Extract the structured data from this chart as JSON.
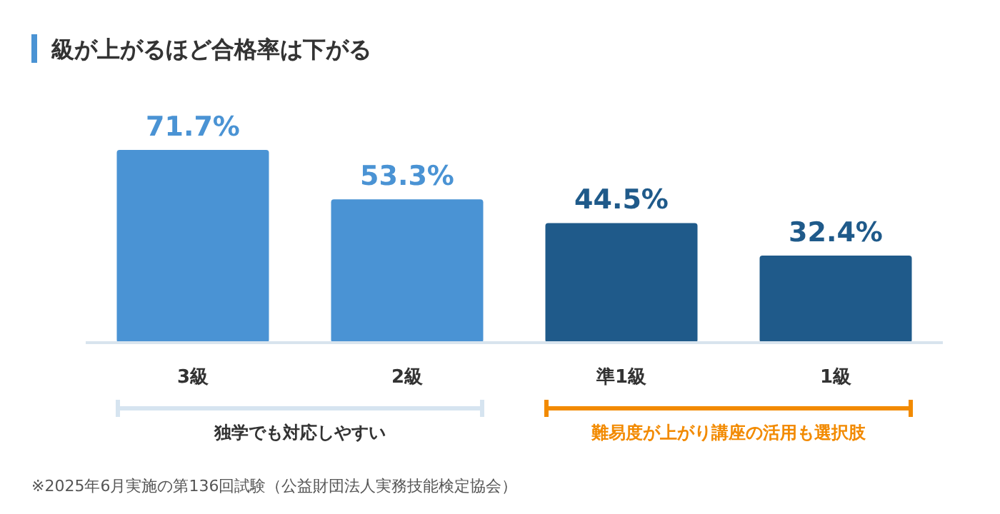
{
  "chart_data": {
    "type": "bar",
    "title": "級が上がるほど合格率は下がる",
    "categories": [
      "3級",
      "2級",
      "準1級",
      "1級"
    ],
    "values": [
      71.7,
      53.3,
      44.5,
      32.4
    ],
    "value_labels": [
      "71.7%",
      "53.3%",
      "44.5%",
      "32.4%"
    ],
    "colors": [
      "#4a93d4",
      "#4a93d4",
      "#1f5a8a",
      "#1f5a8a"
    ],
    "annotations": [
      "独学でも対応しやすい",
      "難易度が上がり講座の活用も選択肢",
      "※2025年6月実施の第136回試験（公益財団法人実務技能検定協会）"
    ]
  }
}
